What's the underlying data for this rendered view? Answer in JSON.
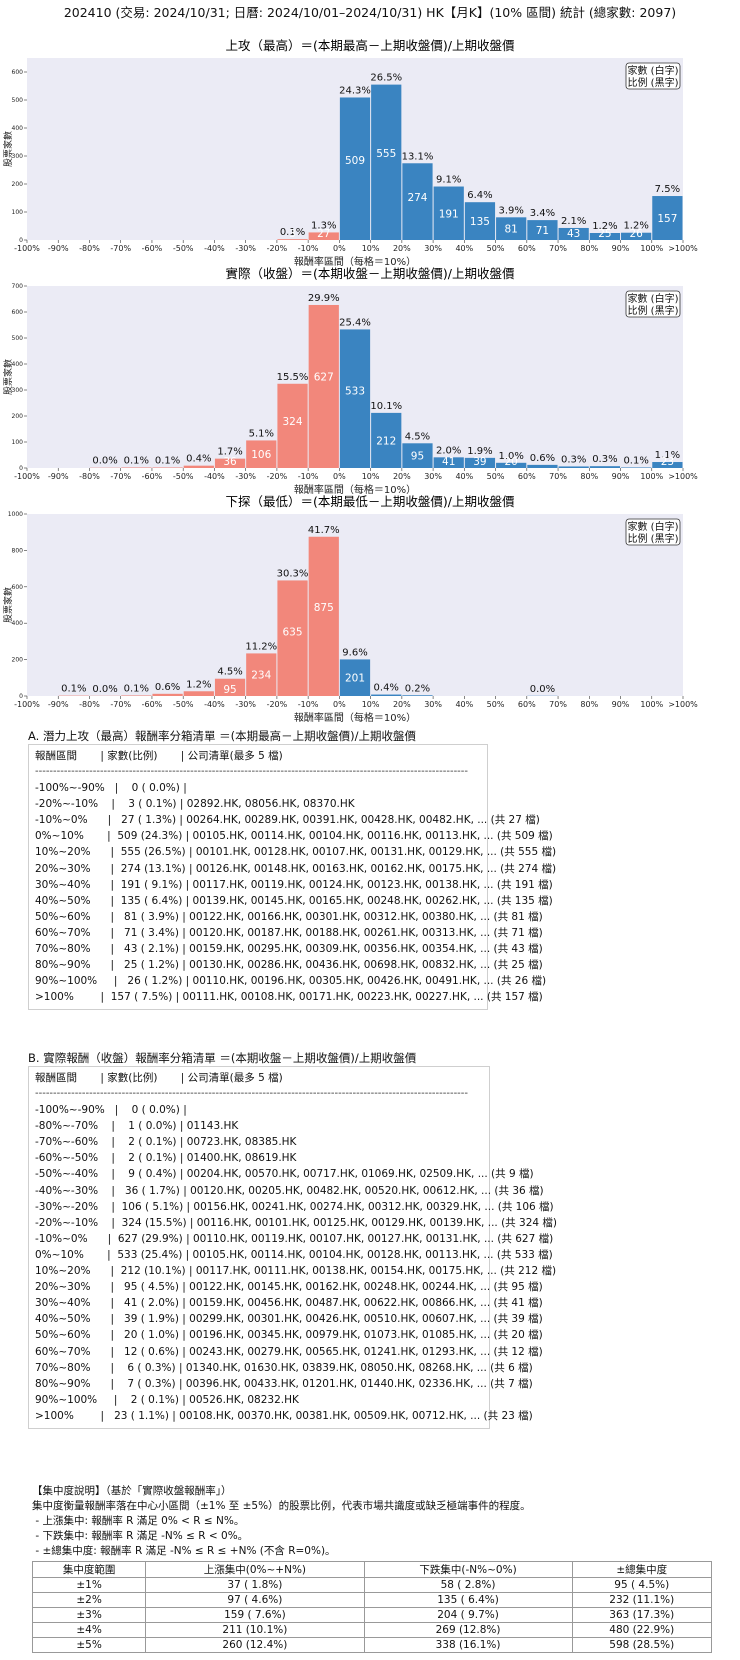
{
  "page_title": "202410 (交易: 2024/10/31; 日曆: 2024/10/01–2024/10/31) HK【月K】(10% 區間) 統計 (總家數: 2097)",
  "colors": {
    "up": "#3a84c1",
    "down": "#f2877b",
    "plot_bg": "#ebebf5"
  },
  "legend": {
    "line1": "家數 (白字)",
    "line2": "比例 (黑字)"
  },
  "chart_data": [
    {
      "type": "bar",
      "title": "上攻（最高）＝(本期最高－上期收盤價)/上期收盤價",
      "xlabel": "報酬率區間（每格＝10%）",
      "ylabel": "股票家數",
      "ylim": [
        0,
        650
      ],
      "yticks": [
        0,
        100,
        200,
        300,
        400,
        500,
        600
      ],
      "xticks": [
        "-100%",
        "-90%",
        "-80%",
        "-70%",
        "-60%",
        "-50%",
        "-40%",
        "-30%",
        "-20%",
        "-10%",
        "0%",
        "10%",
        "20%",
        "30%",
        "40%",
        "50%",
        "60%",
        "70%",
        "80%",
        "90%",
        "100%",
        ">100%"
      ],
      "values": [
        0,
        0,
        0,
        0,
        0,
        0,
        0,
        0,
        3,
        27,
        509,
        555,
        274,
        191,
        135,
        81,
        71,
        43,
        25,
        26,
        157
      ],
      "pct_labels": [
        "",
        "",
        "",
        "",
        "",
        "",
        "",
        "",
        "0.1%",
        "1.3%",
        "24.3%",
        "26.5%",
        "13.1%",
        "9.1%",
        "6.4%",
        "3.9%",
        "3.4%",
        "2.1%",
        "1.2%",
        "1.2%",
        "7.5%"
      ]
    },
    {
      "type": "bar",
      "title": "實際（收盤）＝(本期收盤－上期收盤價)/上期收盤價",
      "xlabel": "報酬率區間（每格＝10%）",
      "ylabel": "股票家數",
      "ylim": [
        0,
        700
      ],
      "yticks": [
        0,
        100,
        200,
        300,
        400,
        500,
        600,
        700
      ],
      "xticks": [
        "-100%",
        "-90%",
        "-80%",
        "-70%",
        "-60%",
        "-50%",
        "-40%",
        "-30%",
        "-20%",
        "-10%",
        "0%",
        "10%",
        "20%",
        "30%",
        "40%",
        "50%",
        "60%",
        "70%",
        "80%",
        "90%",
        "100%",
        ">100%"
      ],
      "values": [
        0,
        1,
        2,
        2,
        9,
        36,
        106,
        324,
        627,
        533,
        212,
        95,
        41,
        39,
        20,
        12,
        6,
        7,
        2,
        23
      ],
      "bin_start": 1,
      "pct_labels": [
        "0.0%",
        "0.1%",
        "0.1%",
        "0.4%",
        "1.7%",
        "5.1%",
        "15.5%",
        "29.9%",
        "25.4%",
        "10.1%",
        "4.5%",
        "2.0%",
        "1.9%",
        "1.0%",
        "0.6%",
        "0.3%",
        "0.3%",
        "0.1%",
        "1.1%"
      ],
      "pct_offset": 1,
      "count_labels": [
        "",
        "",
        "",
        "",
        "",
        "36",
        "106",
        "324",
        "627",
        "533",
        "212",
        "95",
        "41",
        "39",
        "20",
        "",
        "",
        "",
        "",
        "23"
      ]
    },
    {
      "type": "bar",
      "title": "下探（最低）＝(本期最低－上期收盤價)/上期收盤價",
      "xlabel": "報酬率區間（每格＝10%）",
      "ylabel": "股票家數",
      "ylim": [
        0,
        1000
      ],
      "yticks": [
        0,
        200,
        400,
        600,
        800,
        1000
      ],
      "xticks": [
        "-100%",
        "-90%",
        "-80%",
        "-70%",
        "-60%",
        "-50%",
        "-40%",
        "-30%",
        "-20%",
        "-10%",
        "0%",
        "10%",
        "20%",
        "30%",
        "40%",
        "50%",
        "60%",
        "70%",
        "80%",
        "90%",
        "100%",
        ">100%"
      ],
      "values": [
        0,
        2,
        1,
        3,
        12,
        26,
        95,
        234,
        635,
        875,
        201,
        8,
        4,
        0,
        0,
        0,
        1,
        0,
        0,
        0,
        0
      ],
      "pct_labels": [
        "",
        "0.1%",
        "0.0%",
        "0.1%",
        "0.6%",
        "1.2%",
        "4.5%",
        "11.2%",
        "30.3%",
        "41.7%",
        "9.6%",
        "0.4%",
        "0.2%",
        "",
        "",
        "",
        "0.0%",
        "",
        "",
        "",
        ""
      ],
      "count_labels": [
        "",
        "",
        "",
        "",
        "",
        "",
        "95",
        "234",
        "635",
        "875",
        "201",
        "",
        "",
        "",
        "",
        "",
        "",
        "",
        "",
        "",
        ""
      ]
    }
  ],
  "section_a": {
    "title": "A. 潛力上攻（最高）報酬率分箱清單 ＝(本期最高－上期收盤價)/上期收盤價",
    "header": "報酬區間       | 家數(比例)       | 公司清單(最多 5 檔)",
    "rows": [
      "-100%~-90%   |    0 ( 0.0%) |",
      "-20%~-10%    |    3 ( 0.1%) | 02892.HK, 08056.HK, 08370.HK",
      "-10%~0%      |   27 ( 1.3%) | 00264.HK, 00289.HK, 00391.HK, 00428.HK, 00482.HK, ... (共 27 檔)",
      "0%~10%       |  509 (24.3%) | 00105.HK, 00114.HK, 00104.HK, 00116.HK, 00113.HK, ... (共 509 檔)",
      "10%~20%      |  555 (26.5%) | 00101.HK, 00128.HK, 00107.HK, 00131.HK, 00129.HK, ... (共 555 檔)",
      "20%~30%      |  274 (13.1%) | 00126.HK, 00148.HK, 00163.HK, 00162.HK, 00175.HK, ... (共 274 檔)",
      "30%~40%      |  191 ( 9.1%) | 00117.HK, 00119.HK, 00124.HK, 00123.HK, 00138.HK, ... (共 191 檔)",
      "40%~50%      |  135 ( 6.4%) | 00139.HK, 00145.HK, 00165.HK, 00248.HK, 00262.HK, ... (共 135 檔)",
      "50%~60%      |   81 ( 3.9%) | 00122.HK, 00166.HK, 00301.HK, 00312.HK, 00380.HK, ... (共 81 檔)",
      "60%~70%      |   71 ( 3.4%) | 00120.HK, 00187.HK, 00188.HK, 00261.HK, 00313.HK, ... (共 71 檔)",
      "70%~80%      |   43 ( 2.1%) | 00159.HK, 00295.HK, 00309.HK, 00356.HK, 00354.HK, ... (共 43 檔)",
      "80%~90%      |   25 ( 1.2%) | 00130.HK, 00286.HK, 00436.HK, 00698.HK, 00832.HK, ... (共 25 檔)",
      "90%~100%     |   26 ( 1.2%) | 00110.HK, 00196.HK, 00305.HK, 00426.HK, 00491.HK, ... (共 26 檔)",
      ">100%        |  157 ( 7.5%) | 00111.HK, 00108.HK, 00171.HK, 00223.HK, 00227.HK, ... (共 157 檔)"
    ]
  },
  "section_b": {
    "title": "B. 實際報酬（收盤）報酬率分箱清單 ＝(本期收盤－上期收盤價)/上期收盤價",
    "header": "報酬區間       | 家數(比例)       | 公司清單(最多 5 檔)",
    "rows": [
      "-100%~-90%   |    0 ( 0.0%) |",
      "-80%~-70%    |    1 ( 0.0%) | 01143.HK",
      "-70%~-60%    |    2 ( 0.1%) | 00723.HK, 08385.HK",
      "-60%~-50%    |    2 ( 0.1%) | 01400.HK, 08619.HK",
      "-50%~-40%    |    9 ( 0.4%) | 00204.HK, 00570.HK, 00717.HK, 01069.HK, 02509.HK, ... (共 9 檔)",
      "-40%~-30%    |   36 ( 1.7%) | 00120.HK, 00205.HK, 00482.HK, 00520.HK, 00612.HK, ... (共 36 檔)",
      "-30%~-20%    |  106 ( 5.1%) | 00156.HK, 00241.HK, 00274.HK, 00312.HK, 00329.HK, ... (共 106 檔)",
      "-20%~-10%    |  324 (15.5%) | 00116.HK, 00101.HK, 00125.HK, 00129.HK, 00139.HK, ... (共 324 檔)",
      "-10%~0%      |  627 (29.9%) | 00110.HK, 00119.HK, 00107.HK, 00127.HK, 00131.HK, ... (共 627 檔)",
      "0%~10%       |  533 (25.4%) | 00105.HK, 00114.HK, 00104.HK, 00128.HK, 00113.HK, ... (共 533 檔)",
      "10%~20%      |  212 (10.1%) | 00117.HK, 00111.HK, 00138.HK, 00154.HK, 00175.HK, ... (共 212 檔)",
      "20%~30%      |   95 ( 4.5%) | 00122.HK, 00145.HK, 00162.HK, 00248.HK, 00244.HK, ... (共 95 檔)",
      "30%~40%      |   41 ( 2.0%) | 00159.HK, 00456.HK, 00487.HK, 00622.HK, 00866.HK, ... (共 41 檔)",
      "40%~50%      |   39 ( 1.9%) | 00299.HK, 00301.HK, 00426.HK, 00510.HK, 00607.HK, ... (共 39 檔)",
      "50%~60%      |   20 ( 1.0%) | 00196.HK, 00345.HK, 00979.HK, 01073.HK, 01085.HK, ... (共 20 檔)",
      "60%~70%      |   12 ( 0.6%) | 00243.HK, 00279.HK, 00565.HK, 01241.HK, 01293.HK, ... (共 12 檔)",
      "70%~80%      |    6 ( 0.3%) | 01340.HK, 01630.HK, 03839.HK, 08050.HK, 08268.HK, ... (共 6 檔)",
      "80%~90%      |    7 ( 0.3%) | 00396.HK, 00433.HK, 01201.HK, 01440.HK, 02336.HK, ... (共 7 檔)",
      "90%~100%     |    2 ( 0.1%) | 00526.HK, 08232.HK",
      ">100%        |   23 ( 1.1%) | 00108.HK, 00370.HK, 00381.HK, 00509.HK, 00712.HK, ... (共 23 檔)"
    ]
  },
  "concentration": {
    "title": "【集中度說明】（基於「實際收盤報酬率」）",
    "lines": [
      "集中度衡量報酬率落在中心小區間（±1% 至 ±5%）的股票比例，代表市場共識度或缺乏極端事件的程度。",
      " - 上漲集中: 報酬率 R 滿足 0% < R ≤ N%。",
      " - 下跌集中: 報酬率 R 滿足 -N% ≤ R < 0%。",
      " - ±總集中度: 報酬率 R 滿足 -N% ≤ R ≤ +N% (不含 R=0%)。"
    ],
    "headers": [
      "集中度範圍",
      "上漲集中(0%~+N%)",
      "下跌集中(-N%~0%)",
      "±總集中度"
    ],
    "rows": [
      [
        "±1%",
        "37 ( 1.8%)",
        "58 ( 2.8%)",
        "95 ( 4.5%)"
      ],
      [
        "±2%",
        "97 ( 4.6%)",
        "135 ( 6.4%)",
        "232 (11.1%)"
      ],
      [
        "±3%",
        "159 ( 7.6%)",
        "204 ( 9.7%)",
        "363 (17.3%)"
      ],
      [
        "±4%",
        "211 (10.1%)",
        "269 (12.8%)",
        "480 (22.9%)"
      ],
      [
        "±5%",
        "260 (12.4%)",
        "338 (16.1%)",
        "598 (28.5%)"
      ]
    ]
  }
}
